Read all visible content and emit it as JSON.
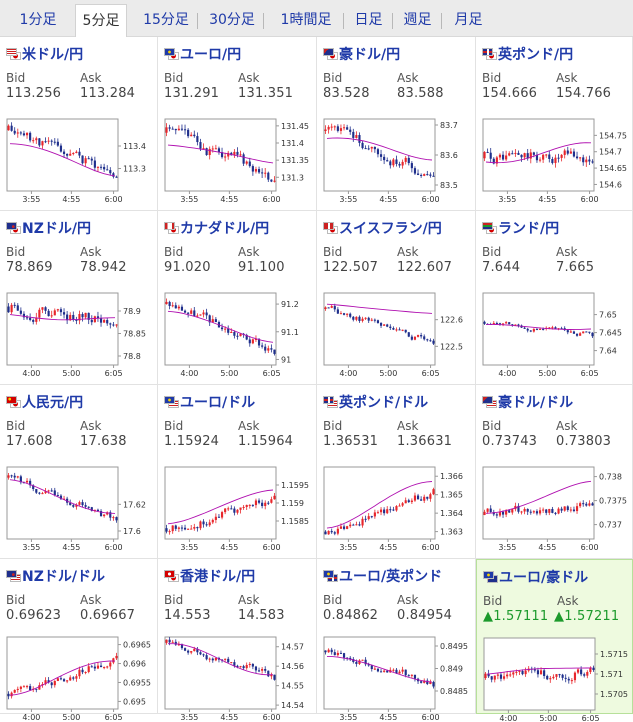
{
  "tabs": [
    {
      "label": "1分足",
      "active": false
    },
    {
      "label": "5分足",
      "active": true
    },
    {
      "label": "15分足",
      "active": false
    },
    {
      "label": "30分足",
      "active": false
    },
    {
      "label": "1時間足",
      "active": false
    },
    {
      "label": "日足",
      "active": false
    },
    {
      "label": "週足",
      "active": false
    },
    {
      "label": "月足",
      "active": false
    }
  ],
  "labels": {
    "bid": "Bid",
    "ask": "Ask"
  },
  "colors": {
    "link": "#1f3aa8",
    "candle_up": "#e8262b",
    "candle_down": "#1f2f8c",
    "ma": "#b010b0",
    "up_value": "#1c9a2c"
  },
  "pairs": [
    {
      "name": "米ドル/円",
      "flags": [
        "us",
        "jp"
      ],
      "bid": "113.256",
      "ask": "113.284",
      "chart_data": {
        "type": "candlestick",
        "x_ticks": [
          "3:55",
          "4:55",
          "6:00"
        ],
        "y_ticks": [
          "113.4",
          "113.3"
        ],
        "ylim": [
          113.2,
          113.52
        ],
        "open": 113.47,
        "ma_start": 113.42,
        "ma_end": 113.27,
        "close": 113.26,
        "volatility": 0.025,
        "seed": 11
      }
    },
    {
      "name": "ユーロ/円",
      "flags": [
        "eu",
        "jp"
      ],
      "bid": "131.291",
      "ask": "131.351",
      "chart_data": {
        "type": "candlestick",
        "x_ticks": [
          "3:55",
          "4:55",
          "6:00"
        ],
        "y_ticks": [
          "131.45",
          "131.4",
          "131.35",
          "131.3"
        ],
        "ylim": [
          131.26,
          131.47
        ],
        "open": 131.43,
        "ma_start": 131.4,
        "ma_end": 131.34,
        "close": 131.29,
        "volatility": 0.018,
        "seed": 23
      }
    },
    {
      "name": "豪ドル/円",
      "flags": [
        "au",
        "jp"
      ],
      "bid": "83.528",
      "ask": "83.588",
      "chart_data": {
        "type": "candlestick",
        "x_ticks": [
          "3:55",
          "4:55",
          "6:00"
        ],
        "y_ticks": [
          "83.7",
          "83.6",
          "83.5"
        ],
        "ylim": [
          83.48,
          83.72
        ],
        "open": 83.68,
        "ma_start": 83.66,
        "ma_end": 83.59,
        "close": 83.53,
        "volatility": 0.018,
        "seed": 37
      }
    },
    {
      "name": "英ポンド/円",
      "flags": [
        "gb",
        "jp"
      ],
      "bid": "154.666",
      "ask": "154.766",
      "chart_data": {
        "type": "candlestick",
        "x_ticks": [
          "3:55",
          "4:55",
          "6:00"
        ],
        "y_ticks": [
          "154.75",
          "154.7",
          "154.65",
          "154.6"
        ],
        "ylim": [
          154.58,
          154.8
        ],
        "open": 154.68,
        "ma_start": 154.67,
        "ma_end": 154.72,
        "close": 154.67,
        "volatility": 0.02,
        "seed": 41
      }
    },
    {
      "name": "NZドル/円",
      "flags": [
        "nz",
        "jp"
      ],
      "bid": "78.869",
      "ask": "78.942",
      "chart_data": {
        "type": "candlestick",
        "x_ticks": [
          "4:00",
          "5:00",
          "6:05"
        ],
        "y_ticks": [
          "78.9",
          "78.85",
          "78.8"
        ],
        "ylim": [
          78.78,
          78.94
        ],
        "open": 78.91,
        "ma_start": 78.89,
        "ma_end": 78.88,
        "close": 78.87,
        "volatility": 0.013,
        "seed": 53
      }
    },
    {
      "name": "カナダドル/円",
      "flags": [
        "ca",
        "jp"
      ],
      "bid": "91.020",
      "ask": "91.100",
      "chart_data": {
        "type": "candlestick",
        "x_ticks": [
          "4:00",
          "5:00",
          "6:05"
        ],
        "y_ticks": [
          "91.2",
          "91.1",
          "91"
        ],
        "ylim": [
          90.98,
          91.24
        ],
        "open": 91.2,
        "ma_start": 91.18,
        "ma_end": 91.06,
        "close": 91.02,
        "volatility": 0.018,
        "seed": 67
      }
    },
    {
      "name": "スイスフラン/円",
      "flags": [
        "ch",
        "jp"
      ],
      "bid": "122.507",
      "ask": "122.607",
      "chart_data": {
        "type": "candlestick",
        "x_ticks": [
          "4:00",
          "5:00",
          "6:05"
        ],
        "y_ticks": [
          "122.6",
          "122.5"
        ],
        "ylim": [
          122.43,
          122.7
        ],
        "open": 122.64,
        "ma_start": 122.66,
        "ma_end": 122.62,
        "close": 122.51,
        "volatility": 0.012,
        "seed": 79
      }
    },
    {
      "name": "ランド/円",
      "flags": [
        "za",
        "jp"
      ],
      "bid": "7.644",
      "ask": "7.665",
      "chart_data": {
        "type": "candlestick",
        "x_ticks": [
          "4:00",
          "5:00",
          "6:05"
        ],
        "y_ticks": [
          "7.65",
          "7.645",
          "7.64"
        ],
        "ylim": [
          7.636,
          7.656
        ],
        "open": 7.648,
        "ma_start": 7.647,
        "ma_end": 7.646,
        "close": 7.644,
        "volatility": 0.0007,
        "seed": 83
      }
    },
    {
      "name": "人民元/円",
      "flags": [
        "cn",
        "jp"
      ],
      "bid": "17.608",
      "ask": "17.638",
      "chart_data": {
        "type": "candlestick",
        "x_ticks": [
          "3:55",
          "4:55",
          "6:00"
        ],
        "y_ticks": [
          "17.62",
          "17.6"
        ],
        "ylim": [
          17.594,
          17.648
        ],
        "open": 17.64,
        "ma_start": 17.638,
        "ma_end": 17.612,
        "close": 17.608,
        "volatility": 0.003,
        "seed": 97
      }
    },
    {
      "name": "ユーロ/ドル",
      "flags": [
        "eu",
        "us"
      ],
      "bid": "1.15924",
      "ask": "1.15964",
      "chart_data": {
        "type": "candlestick",
        "x_ticks": [
          "3:55",
          "4:55",
          "6:00"
        ],
        "y_ticks": [
          "1.1595",
          "1.159",
          "1.1585"
        ],
        "ylim": [
          1.158,
          1.16
        ],
        "open": 1.1583,
        "ma_start": 1.1584,
        "ma_end": 1.1594,
        "close": 1.1592,
        "volatility": 0.00013,
        "seed": 101
      }
    },
    {
      "name": "英ポンド/ドル",
      "flags": [
        "gb",
        "us"
      ],
      "bid": "1.36531",
      "ask": "1.36631",
      "chart_data": {
        "type": "candlestick",
        "x_ticks": [
          "3:55",
          "4:55",
          "6:00"
        ],
        "y_ticks": [
          "1.366",
          "1.365",
          "1.364",
          "1.363"
        ],
        "ylim": [
          1.3626,
          1.3665
        ],
        "open": 1.363,
        "ma_start": 1.3632,
        "ma_end": 1.3658,
        "close": 1.3653,
        "volatility": 0.00022,
        "seed": 113
      }
    },
    {
      "name": "豪ドル/ドル",
      "flags": [
        "au",
        "us"
      ],
      "bid": "0.73743",
      "ask": "0.73803",
      "chart_data": {
        "type": "candlestick",
        "x_ticks": [
          "3:55",
          "4:55",
          "6:00"
        ],
        "y_ticks": [
          "0.738",
          "0.7375",
          "0.737"
        ],
        "ylim": [
          0.7367,
          0.7382
        ],
        "open": 0.7372,
        "ma_start": 0.7372,
        "ma_end": 0.7379,
        "close": 0.7374,
        "volatility": 9e-05,
        "seed": 127
      }
    },
    {
      "name": "NZドル/ドル",
      "flags": [
        "nz",
        "us"
      ],
      "bid": "0.69623",
      "ask": "0.69667",
      "chart_data": {
        "type": "candlestick",
        "x_ticks": [
          "4:00",
          "5:00",
          "6:05"
        ],
        "y_ticks": [
          "0.6965",
          "0.696",
          "0.6955",
          "0.695"
        ],
        "ylim": [
          0.6948,
          0.6967
        ],
        "open": 0.6952,
        "ma_start": 0.6952,
        "ma_end": 0.6961,
        "close": 0.6962,
        "volatility": 0.00011,
        "seed": 131
      }
    },
    {
      "name": "香港ドル/円",
      "flags": [
        "hk",
        "jp"
      ],
      "bid": "14.553",
      "ask": "14.583",
      "chart_data": {
        "type": "candlestick",
        "x_ticks": [
          "3:55",
          "4:55",
          "6:00"
        ],
        "y_ticks": [
          "14.57",
          "14.56",
          "14.55",
          "14.54"
        ],
        "ylim": [
          14.538,
          14.575
        ],
        "open": 14.572,
        "ma_start": 14.571,
        "ma_end": 14.556,
        "close": 14.553,
        "volatility": 0.002,
        "seed": 139
      }
    },
    {
      "name": "ユーロ/英ポンド",
      "flags": [
        "eu",
        "gb"
      ],
      "bid": "0.84862",
      "ask": "0.84954",
      "chart_data": {
        "type": "candlestick",
        "x_ticks": [
          "3:55",
          "4:55",
          "6:00"
        ],
        "y_ticks": [
          "0.8495",
          "0.849",
          "0.8485"
        ],
        "ylim": [
          0.8481,
          0.8497
        ],
        "open": 0.8494,
        "ma_start": 0.8493,
        "ma_end": 0.8487,
        "close": 0.8486,
        "volatility": 8e-05,
        "seed": 149
      }
    },
    {
      "name": "ユーロ/豪ドル",
      "flags": [
        "eu",
        "au"
      ],
      "bid": "▲1.57111",
      "ask": "▲1.57211",
      "highlight": true,
      "chart_data": {
        "type": "candlestick",
        "x_ticks": [
          "4:00",
          "5:00",
          "6:05"
        ],
        "y_ticks": [
          "1.5715",
          "1.571",
          "1.5705"
        ],
        "ylim": [
          1.5701,
          1.5719
        ],
        "open": 1.5709,
        "ma_start": 1.571,
        "ma_end": 1.5712,
        "close": 1.5711,
        "volatility": 0.00012,
        "seed": 157
      }
    }
  ]
}
